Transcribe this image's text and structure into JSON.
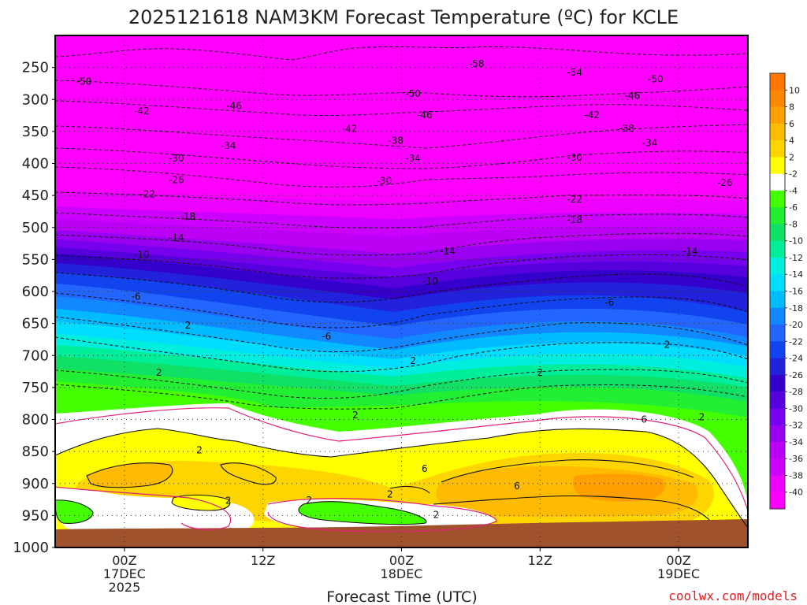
{
  "chart_data": {
    "type": "heatmap",
    "title": "2025121618 NAM3KM Forecast Temperature (ºC) for KCLE",
    "xlabel": "Forecast Time (UTC)",
    "ylabel": "",
    "credit": "coolwx.com/models",
    "x_ticks": [
      {
        "hour": 6,
        "lines": [
          "00Z",
          "17DEC",
          "2025"
        ]
      },
      {
        "hour": 18,
        "lines": [
          "12Z"
        ]
      },
      {
        "hour": 30,
        "lines": [
          "00Z",
          "18DEC"
        ]
      },
      {
        "hour": 42,
        "lines": [
          "12Z"
        ]
      },
      {
        "hour": 54,
        "lines": [
          "00Z",
          "19DEC"
        ]
      }
    ],
    "xlim": [
      0,
      60
    ],
    "ylim": [
      1000,
      200
    ],
    "y_ticks": [
      250,
      300,
      350,
      400,
      450,
      500,
      550,
      600,
      650,
      700,
      750,
      800,
      850,
      900,
      950,
      1000
    ],
    "colorbar": {
      "ticks": [
        "10",
        "8",
        "6",
        "4",
        "2",
        "-2",
        "-4",
        "-6",
        "-8",
        "-10",
        "-12",
        "-14",
        "-16",
        "-18",
        "-20",
        "-22",
        "-24",
        "-26",
        "-28",
        "-30",
        "-32",
        "-34",
        "-36",
        "-38",
        "-40"
      ],
      "colors": [
        "#ff8800",
        "#ffa000",
        "#ffbb00",
        "#ffd500",
        "#ffff00",
        "#ffffff",
        "#44ff00",
        "#22ee33",
        "#11e066",
        "#00ee99",
        "#00eedd",
        "#00ddff",
        "#00bbff",
        "#1188ff",
        "#2266ff",
        "#1144ee",
        "#2222dd",
        "#3300cc",
        "#5500dd",
        "#7700ee",
        "#9900f0",
        "#bb00f5",
        "#cc00ff",
        "#ee00ff",
        "#ff00ff"
      ]
    },
    "contour_labels": [
      {
        "text": "-50",
        "hour": 2.5,
        "p": 272
      },
      {
        "text": "-46",
        "hour": 15.5,
        "p": 310
      },
      {
        "text": "-50",
        "hour": 31,
        "p": 291
      },
      {
        "text": "-58",
        "hour": 36.5,
        "p": 244
      },
      {
        "text": "-54",
        "hour": 45,
        "p": 258
      },
      {
        "text": "-50",
        "hour": 52,
        "p": 268
      },
      {
        "text": "-46",
        "hour": 50,
        "p": 294
      },
      {
        "text": "-42",
        "hour": 7.5,
        "p": 318
      },
      {
        "text": "-46",
        "hour": 32,
        "p": 324
      },
      {
        "text": "-42",
        "hour": 25.5,
        "p": 346
      },
      {
        "text": "-42",
        "hour": 46.5,
        "p": 324
      },
      {
        "text": "-38",
        "hour": 49.5,
        "p": 345
      },
      {
        "text": "-38",
        "hour": 29.5,
        "p": 364
      },
      {
        "text": "-34",
        "hour": 15,
        "p": 372
      },
      {
        "text": "-34",
        "hour": 51.5,
        "p": 368
      },
      {
        "text": "-34",
        "hour": 31,
        "p": 392
      },
      {
        "text": "-30",
        "hour": 10.5,
        "p": 392
      },
      {
        "text": "-30",
        "hour": 45,
        "p": 391
      },
      {
        "text": "-30",
        "hour": 28.5,
        "p": 427
      },
      {
        "text": "-26",
        "hour": 10.5,
        "p": 426
      },
      {
        "text": "-26",
        "hour": 58,
        "p": 430
      },
      {
        "text": "-22",
        "hour": 8,
        "p": 448
      },
      {
        "text": "-22",
        "hour": 45,
        "p": 456
      },
      {
        "text": "-18",
        "hour": 11.5,
        "p": 483
      },
      {
        "text": "-18",
        "hour": 45,
        "p": 488
      },
      {
        "text": "-14",
        "hour": 10.5,
        "p": 516
      },
      {
        "text": "-14",
        "hour": 34,
        "p": 537
      },
      {
        "text": "-14",
        "hour": 55,
        "p": 537
      },
      {
        "text": "-10",
        "hour": 7.5,
        "p": 543
      },
      {
        "text": "-10",
        "hour": 32.5,
        "p": 584
      },
      {
        "text": "-6",
        "hour": 7,
        "p": 608
      },
      {
        "text": "-6",
        "hour": 48,
        "p": 617
      },
      {
        "text": "-6",
        "hour": 23.5,
        "p": 670
      },
      {
        "text": "2",
        "hour": 11.5,
        "p": 653
      },
      {
        "text": "2",
        "hour": 31,
        "p": 708
      },
      {
        "text": "2",
        "hour": 9,
        "p": 727
      },
      {
        "text": "2",
        "hour": 42,
        "p": 727
      },
      {
        "text": "2",
        "hour": 53,
        "p": 683
      },
      {
        "text": "2",
        "hour": 26,
        "p": 793
      },
      {
        "text": "2",
        "hour": 12.5,
        "p": 848
      },
      {
        "text": "2",
        "hour": 56,
        "p": 796
      },
      {
        "text": "2",
        "hour": 15,
        "p": 927
      },
      {
        "text": "2",
        "hour": 29,
        "p": 917
      },
      {
        "text": "2",
        "hour": 33,
        "p": 949
      },
      {
        "text": "6",
        "hour": 51,
        "p": 800
      },
      {
        "text": "6",
        "hour": 32,
        "p": 877
      },
      {
        "text": "6",
        "hour": 40,
        "p": 904
      },
      {
        "text": "2",
        "hour": 22,
        "p": 926
      }
    ]
  }
}
